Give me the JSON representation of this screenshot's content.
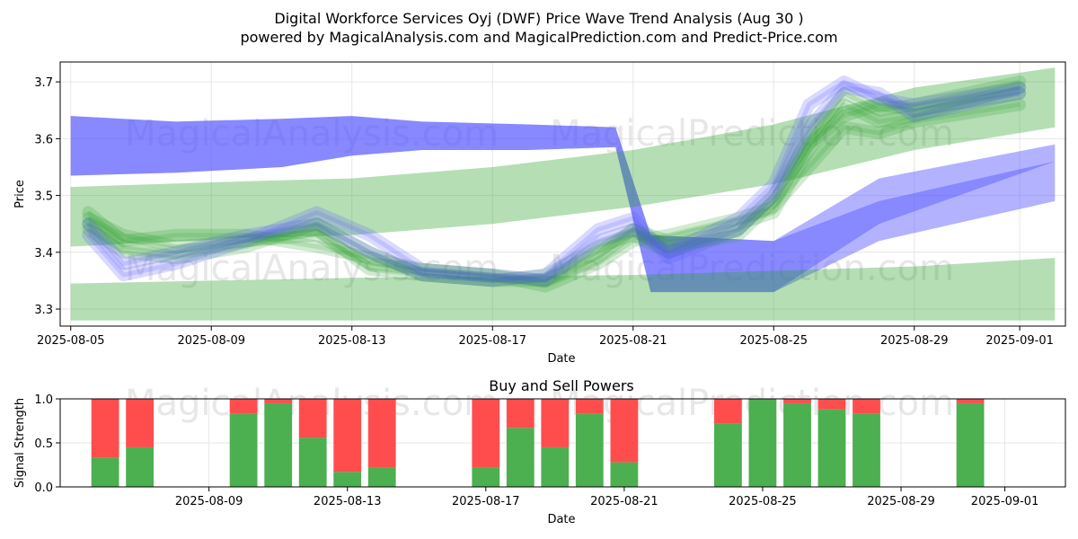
{
  "header": {
    "title": "Digital Workforce Services Oyj (DWF) Price Wave Trend Analysis (Aug 30 )",
    "subtitle": "powered by MagicalAnalysis.com and MagicalPrediction.com and Predict-Price.com"
  },
  "watermarks": {
    "left": "MagicalAnalysis.com",
    "right": "MagicalPrediction.com"
  },
  "colors": {
    "blue_band": "#5555ff",
    "green_band": "#2ca02c",
    "buy": "#4caf50",
    "sell": "#ff4d4d"
  },
  "chart_data": [
    {
      "type": "line",
      "title": "",
      "xlabel": "Date",
      "ylabel": "Price",
      "xlim": [
        "2025-08-05",
        "2025-09-02"
      ],
      "ylim": [
        3.27,
        3.735
      ],
      "xticks": [
        "2025-08-05",
        "2025-08-09",
        "2025-08-13",
        "2025-08-17",
        "2025-08-21",
        "2025-08-25",
        "2025-08-29",
        "2025-09-01"
      ],
      "yticks": [
        "3.3",
        "3.4",
        "3.5",
        "3.6",
        "3.7"
      ],
      "grid": true,
      "series": [
        {
          "kind": "band",
          "color": "blue",
          "x": [
            "2025-08-05",
            "2025-08-08",
            "2025-08-11",
            "2025-08-13",
            "2025-08-15",
            "2025-08-18",
            "2025-08-20.5",
            "2025-08-21.5",
            "2025-08-25",
            "2025-08-28",
            "2025-09-02"
          ],
          "lower": [
            3.535,
            3.54,
            3.55,
            3.57,
            3.58,
            3.58,
            3.585,
            3.33,
            3.33,
            3.45,
            3.56
          ],
          "upper": [
            3.64,
            3.63,
            3.635,
            3.64,
            3.63,
            3.625,
            3.62,
            3.43,
            3.42,
            3.49,
            3.56
          ]
        },
        {
          "kind": "band",
          "color": "blue",
          "x": [
            "2025-08-05",
            "2025-08-08",
            "2025-08-11",
            "2025-08-13",
            "2025-08-15",
            "2025-08-18",
            "2025-08-20.5",
            "2025-08-21.5",
            "2025-08-25",
            "2025-08-28",
            "2025-09-02"
          ],
          "lower": [
            3.535,
            3.54,
            3.55,
            3.57,
            3.58,
            3.58,
            3.585,
            3.33,
            3.33,
            3.42,
            3.49
          ],
          "upper": [
            3.64,
            3.63,
            3.635,
            3.64,
            3.63,
            3.625,
            3.62,
            3.43,
            3.42,
            3.53,
            3.59
          ]
        },
        {
          "kind": "band",
          "color": "green",
          "x": [
            "2025-08-05",
            "2025-08-10",
            "2025-08-13",
            "2025-08-17",
            "2025-08-21",
            "2025-08-25",
            "2025-08-29",
            "2025-09-02"
          ],
          "lower": [
            3.41,
            3.425,
            3.43,
            3.45,
            3.48,
            3.52,
            3.58,
            3.62
          ],
          "upper": [
            3.515,
            3.525,
            3.53,
            3.55,
            3.58,
            3.625,
            3.69,
            3.725
          ]
        },
        {
          "kind": "band",
          "color": "green",
          "x": [
            "2025-08-05",
            "2025-08-13",
            "2025-08-21",
            "2025-08-29",
            "2025-09-02"
          ],
          "lower": [
            3.28,
            3.28,
            3.28,
            3.28,
            3.28
          ],
          "upper": [
            3.345,
            3.355,
            3.36,
            3.375,
            3.39
          ]
        },
        {
          "kind": "wave",
          "color": "green",
          "x": [
            "2025-08-05.5",
            "2025-08-06.5",
            "2025-08-08",
            "2025-08-10",
            "2025-08-12",
            "2025-08-13.5",
            "2025-08-15",
            "2025-08-17",
            "2025-08-18.5",
            "2025-08-20",
            "2025-08-21",
            "2025-08-22",
            "2025-08-24",
            "2025-08-25",
            "2025-08-26",
            "2025-08-27",
            "2025-08-28",
            "2025-08-29",
            "2025-09-01"
          ],
          "y": [
            3.46,
            3.43,
            3.41,
            3.42,
            3.43,
            3.38,
            3.37,
            3.36,
            3.35,
            3.4,
            3.44,
            3.42,
            3.45,
            3.47,
            3.58,
            3.66,
            3.63,
            3.64,
            3.69
          ]
        },
        {
          "kind": "wave",
          "color": "green",
          "x": [
            "2025-08-05.5",
            "2025-08-06.5",
            "2025-08-08",
            "2025-08-10",
            "2025-08-12",
            "2025-08-13.5",
            "2025-08-15",
            "2025-08-17",
            "2025-08-18.5",
            "2025-08-20",
            "2025-08-21",
            "2025-08-22",
            "2025-08-24",
            "2025-08-25",
            "2025-08-26",
            "2025-08-27",
            "2025-08-28",
            "2025-08-29",
            "2025-09-01"
          ],
          "y": [
            3.44,
            3.4,
            3.39,
            3.41,
            3.45,
            3.4,
            3.36,
            3.35,
            3.36,
            3.41,
            3.43,
            3.4,
            3.44,
            3.5,
            3.6,
            3.68,
            3.65,
            3.66,
            3.7
          ]
        },
        {
          "kind": "wave",
          "color": "green",
          "x": [
            "2025-08-05.5",
            "2025-08-06.5",
            "2025-08-08",
            "2025-08-10",
            "2025-08-12",
            "2025-08-13.5",
            "2025-08-15",
            "2025-08-17",
            "2025-08-18.5",
            "2025-08-20",
            "2025-08-21",
            "2025-08-22",
            "2025-08-24",
            "2025-08-25",
            "2025-08-26",
            "2025-08-27",
            "2025-08-28",
            "2025-08-29",
            "2025-09-01"
          ],
          "y": [
            3.47,
            3.42,
            3.43,
            3.43,
            3.41,
            3.39,
            3.37,
            3.36,
            3.34,
            3.38,
            3.42,
            3.43,
            3.46,
            3.48,
            3.55,
            3.62,
            3.61,
            3.63,
            3.66
          ]
        },
        {
          "kind": "wave",
          "color": "green",
          "x": [
            "2025-08-05.5",
            "2025-08-06.5",
            "2025-08-08",
            "2025-08-10",
            "2025-08-12",
            "2025-08-13.5",
            "2025-08-15",
            "2025-08-17",
            "2025-08-18.5",
            "2025-08-20",
            "2025-08-21",
            "2025-08-22",
            "2025-08-24",
            "2025-08-25",
            "2025-08-26",
            "2025-08-27",
            "2025-08-28",
            "2025-08-29",
            "2025-09-01"
          ],
          "y": [
            3.45,
            3.41,
            3.4,
            3.42,
            3.44,
            3.37,
            3.36,
            3.35,
            3.35,
            3.39,
            3.44,
            3.41,
            3.43,
            3.49,
            3.59,
            3.64,
            3.66,
            3.65,
            3.68
          ]
        },
        {
          "kind": "wave",
          "color": "blue",
          "x": [
            "2025-08-05.5",
            "2025-08-06.5",
            "2025-08-08",
            "2025-08-10",
            "2025-08-12",
            "2025-08-13.5",
            "2025-08-15",
            "2025-08-17",
            "2025-08-18.5",
            "2025-08-20",
            "2025-08-21",
            "2025-08-22",
            "2025-08-24",
            "2025-08-25",
            "2025-08-26",
            "2025-08-27",
            "2025-08-28",
            "2025-08-29",
            "2025-09-01"
          ],
          "y": [
            3.43,
            3.36,
            3.38,
            3.42,
            3.47,
            3.43,
            3.37,
            3.36,
            3.35,
            3.42,
            3.44,
            3.4,
            3.46,
            3.52,
            3.66,
            3.7,
            3.67,
            3.66,
            3.69
          ]
        },
        {
          "kind": "wave",
          "color": "blue",
          "x": [
            "2025-08-05.5",
            "2025-08-06.5",
            "2025-08-08",
            "2025-08-10",
            "2025-08-12",
            "2025-08-13.5",
            "2025-08-15",
            "2025-08-17",
            "2025-08-18.5",
            "2025-08-20",
            "2025-08-21",
            "2025-08-22",
            "2025-08-24",
            "2025-08-25",
            "2025-08-26",
            "2025-08-27",
            "2025-08-28",
            "2025-08-29",
            "2025-09-01"
          ],
          "y": [
            3.45,
            3.38,
            3.4,
            3.43,
            3.45,
            3.4,
            3.36,
            3.35,
            3.36,
            3.44,
            3.46,
            3.39,
            3.44,
            3.5,
            3.62,
            3.69,
            3.68,
            3.64,
            3.68
          ]
        }
      ]
    },
    {
      "type": "bar",
      "title": "Buy and Sell Powers",
      "xlabel": "Date",
      "ylabel": "Signal Strength",
      "xlim": [
        "2025-08-05",
        "2025-09-02"
      ],
      "ylim": [
        0,
        1
      ],
      "xticks": [
        "2025-08-09",
        "2025-08-13",
        "2025-08-17",
        "2025-08-21",
        "2025-08-25",
        "2025-08-29",
        "2025-09-01"
      ],
      "yticks": [
        "0.0",
        "0.5",
        "1.0"
      ],
      "grid": true,
      "dates": [
        "2025-08-06",
        "2025-08-07",
        "2025-08-10",
        "2025-08-11",
        "2025-08-12",
        "2025-08-13",
        "2025-08-14",
        "2025-08-17",
        "2025-08-18",
        "2025-08-19",
        "2025-08-20",
        "2025-08-21",
        "2025-08-24",
        "2025-08-25",
        "2025-08-26",
        "2025-08-27",
        "2025-08-28",
        "2025-08-31"
      ],
      "series": [
        {
          "name": "buy",
          "values": [
            0.33,
            0.45,
            0.83,
            0.95,
            0.56,
            0.17,
            0.22,
            0.22,
            0.67,
            0.45,
            0.83,
            0.28,
            0.72,
            1.0,
            0.95,
            0.88,
            0.83,
            0.95
          ]
        },
        {
          "name": "sell",
          "values": [
            0.67,
            0.55,
            0.17,
            0.05,
            0.44,
            0.83,
            0.78,
            0.78,
            0.33,
            0.55,
            0.17,
            0.72,
            0.28,
            0.0,
            0.05,
            0.12,
            0.17,
            0.05
          ]
        }
      ]
    }
  ]
}
